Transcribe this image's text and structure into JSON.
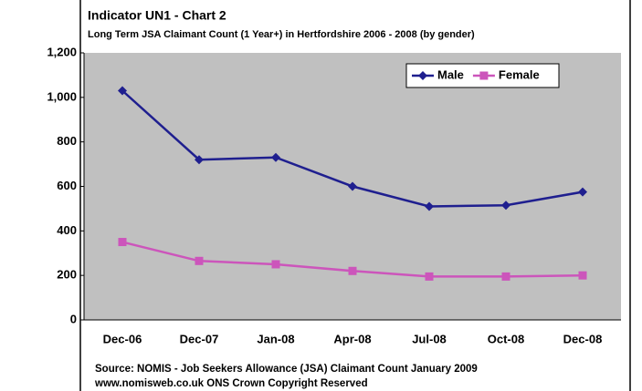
{
  "chart_data": {
    "type": "line",
    "title": "Indicator UN1 - Chart 2",
    "subtitle": "Long Term JSA Claimant Count (1 Year+) in Hertfordshire 2006 - 2008 (by gender)",
    "categories": [
      "Dec-06",
      "Dec-07",
      "Jan-08",
      "Apr-08",
      "Jul-08",
      "Oct-08",
      "Dec-08"
    ],
    "series": [
      {
        "name": "Male",
        "color": "#1f1f8f",
        "values": [
          1030,
          720,
          730,
          600,
          510,
          515,
          575
        ]
      },
      {
        "name": "Female",
        "color": "#cc55bb",
        "values": [
          350,
          265,
          250,
          220,
          195,
          195,
          200
        ]
      }
    ],
    "ylim": [
      0,
      1200
    ],
    "yticks": [
      0,
      200,
      400,
      600,
      800,
      {
        "value": 1000,
        "label": "1,000"
      },
      {
        "value": 1200,
        "label": "1,200"
      }
    ],
    "legend": "top-right",
    "source": [
      "Source: NOMIS - Job Seekers Allowance (JSA) Claimant Count January 2009",
      "www.nomisweb.co.uk ONS Crown Copyright Reserved"
    ]
  }
}
